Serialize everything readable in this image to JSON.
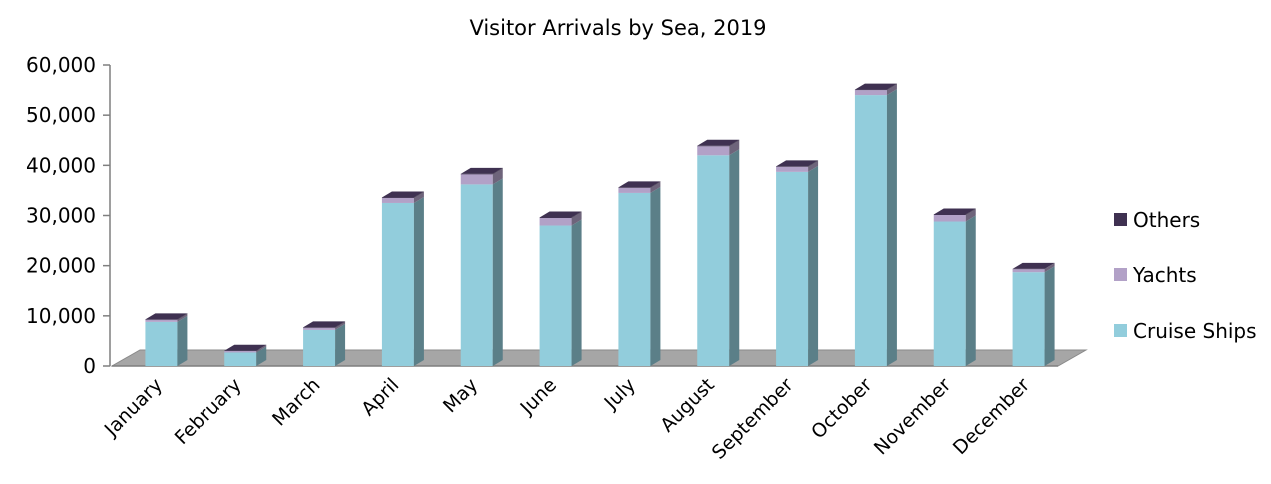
{
  "chart_data": {
    "type": "bar",
    "stacked": true,
    "three_d": true,
    "title": "Visitor Arrivals by Sea, 2019",
    "categories": [
      "January",
      "February",
      "March",
      "April",
      "May",
      "June",
      "July",
      "August",
      "September",
      "October",
      "November",
      "December"
    ],
    "series": [
      {
        "name": "Cruise Ships",
        "color": "#92cddc",
        "values": [
          8800,
          2700,
          7200,
          32500,
          36200,
          28000,
          34500,
          42000,
          38700,
          54000,
          28800,
          18700
        ]
      },
      {
        "name": "Yachts",
        "color": "#b2a1c7",
        "values": [
          400,
          300,
          400,
          1000,
          2000,
          1500,
          1000,
          1800,
          1000,
          1000,
          1300,
          600
        ]
      },
      {
        "name": "Others",
        "color": "#3f3151",
        "values": [
          100,
          50,
          100,
          100,
          100,
          100,
          100,
          100,
          100,
          100,
          100,
          50
        ]
      }
    ],
    "ylim": [
      0,
      60000
    ],
    "yticks": [
      0,
      10000,
      20000,
      30000,
      40000,
      50000,
      60000
    ],
    "ytick_labels": [
      "0",
      "10,000",
      "20,000",
      "30,000",
      "40,000",
      "50,000",
      "60,000"
    ],
    "legend_order": [
      "Others",
      "Yachts",
      "Cruise Ships"
    ],
    "legend_position": "right",
    "grid": false,
    "floor_color": "#a6a6a6"
  }
}
